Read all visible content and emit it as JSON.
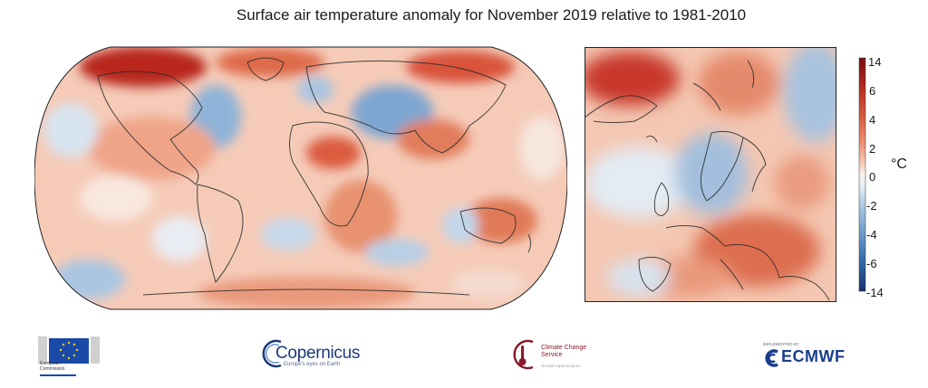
{
  "title": "Surface air temperature anomaly for November 2019 relative to 1981-2010",
  "colorbar": {
    "ticks": [
      "14",
      "6",
      "4",
      "2",
      "0",
      "-2",
      "-4",
      "-6",
      "-14"
    ],
    "unit": "°C",
    "colors": [
      "#1a2f6e",
      "#2f66a6",
      "#6d9ccb",
      "#adcbe3",
      "#e8eef4",
      "#f8f4f0",
      "#f6c9b4",
      "#ee9376",
      "#d85a3d",
      "#b22a20",
      "#7a0c12"
    ]
  },
  "maps": {
    "world": {
      "anomaly_tint": "warm",
      "land_color": "#f1b59c"
    },
    "europe": {
      "anomaly_tint": "mixed"
    }
  },
  "logos": {
    "eu": {
      "label": "European Commission",
      "flag_color": "#1a4aa8",
      "star_color": "#f5d000"
    },
    "copernicus": {
      "name": "Copernicus",
      "subtitle": "Europe's eyes on Earth"
    },
    "c3s": {
      "name": "Climate Change Service",
      "url": "climate.copernicus.eu"
    },
    "ecmwf": {
      "prefix": "IMPLEMENTED BY",
      "name": "ECMWF"
    }
  }
}
